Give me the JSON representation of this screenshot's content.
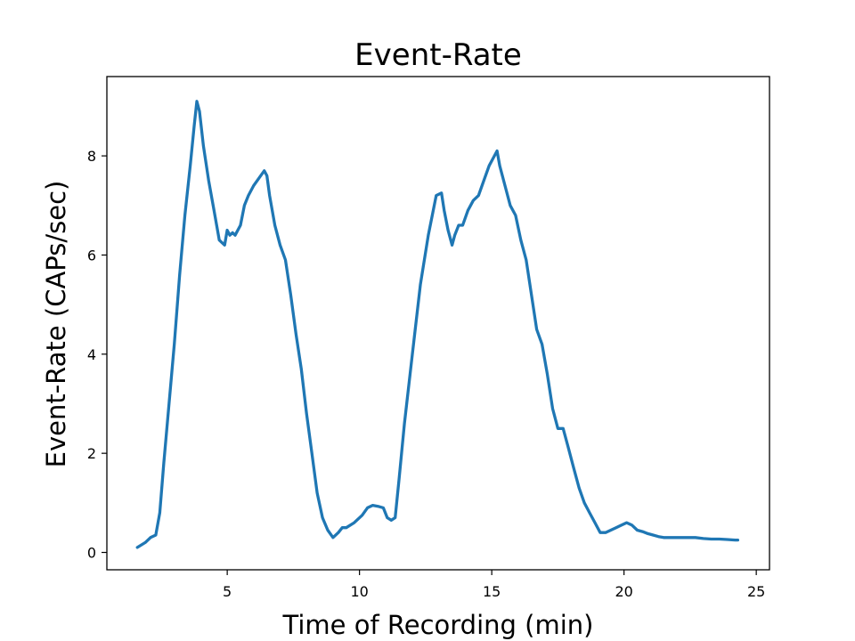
{
  "chart_data": {
    "type": "line",
    "title": "Event-Rate",
    "xlabel": "Time of Recording (min)",
    "ylabel": "Event-Rate (CAPs/sec)",
    "xlim": [
      0.45,
      25.5
    ],
    "ylim": [
      -0.35,
      9.6
    ],
    "x_ticks": [
      5,
      10,
      15,
      20,
      25
    ],
    "y_ticks": [
      0,
      2,
      4,
      6,
      8
    ],
    "grid": false,
    "legend": "none",
    "colors": {
      "line": "#1f77b4",
      "axes": "#000000",
      "background": "#ffffff"
    },
    "series": [
      {
        "x": [
          1.6,
          1.9,
          2.1,
          2.3,
          2.45,
          2.6,
          2.8,
          3.0,
          3.2,
          3.4,
          3.6,
          3.75,
          3.85,
          3.95,
          4.1,
          4.3,
          4.5,
          4.7,
          4.9,
          5.0,
          5.1,
          5.2,
          5.3,
          5.5,
          5.65,
          5.8,
          6.0,
          6.2,
          6.4,
          6.5,
          6.6,
          6.8,
          7.0,
          7.2,
          7.4,
          7.6,
          7.8,
          8.0,
          8.2,
          8.4,
          8.6,
          8.8,
          9.0,
          9.2,
          9.35,
          9.5,
          9.8,
          10.1,
          10.3,
          10.5,
          10.7,
          10.9,
          11.05,
          11.2,
          11.35,
          11.5,
          11.7,
          12.0,
          12.3,
          12.6,
          12.9,
          13.1,
          13.2,
          13.35,
          13.5,
          13.6,
          13.75,
          13.9,
          14.1,
          14.3,
          14.5,
          14.7,
          14.9,
          15.1,
          15.2,
          15.3,
          15.5,
          15.7,
          15.9,
          16.1,
          16.3,
          16.5,
          16.7,
          16.9,
          17.1,
          17.3,
          17.5,
          17.7,
          17.9,
          18.1,
          18.3,
          18.5,
          18.7,
          18.9,
          19.1,
          19.3,
          19.5,
          19.7,
          19.9,
          20.1,
          20.3,
          20.5,
          20.7,
          20.9,
          21.1,
          21.3,
          21.5,
          21.8,
          22.1,
          22.4,
          22.7,
          23.0,
          23.3,
          23.6,
          23.9,
          24.2,
          24.3
        ],
        "y": [
          0.1,
          0.2,
          0.3,
          0.35,
          0.8,
          1.8,
          3.0,
          4.2,
          5.6,
          6.8,
          7.8,
          8.6,
          9.1,
          8.9,
          8.2,
          7.5,
          6.9,
          6.3,
          6.2,
          6.5,
          6.4,
          6.45,
          6.4,
          6.6,
          7.0,
          7.2,
          7.4,
          7.55,
          7.7,
          7.6,
          7.2,
          6.6,
          6.2,
          5.9,
          5.2,
          4.4,
          3.7,
          2.8,
          2.0,
          1.2,
          0.7,
          0.45,
          0.3,
          0.4,
          0.5,
          0.5,
          0.6,
          0.75,
          0.9,
          0.95,
          0.93,
          0.9,
          0.7,
          0.65,
          0.7,
          1.5,
          2.6,
          4.0,
          5.4,
          6.4,
          7.2,
          7.25,
          6.9,
          6.5,
          6.2,
          6.4,
          6.6,
          6.6,
          6.9,
          7.1,
          7.2,
          7.5,
          7.8,
          8.0,
          8.1,
          7.8,
          7.4,
          7.0,
          6.8,
          6.3,
          5.9,
          5.2,
          4.5,
          4.2,
          3.6,
          2.9,
          2.5,
          2.5,
          2.1,
          1.7,
          1.3,
          1.0,
          0.8,
          0.6,
          0.4,
          0.4,
          0.45,
          0.5,
          0.55,
          0.6,
          0.55,
          0.45,
          0.42,
          0.38,
          0.35,
          0.32,
          0.3,
          0.3,
          0.3,
          0.3,
          0.3,
          0.28,
          0.27,
          0.27,
          0.26,
          0.25,
          0.25
        ]
      }
    ]
  }
}
